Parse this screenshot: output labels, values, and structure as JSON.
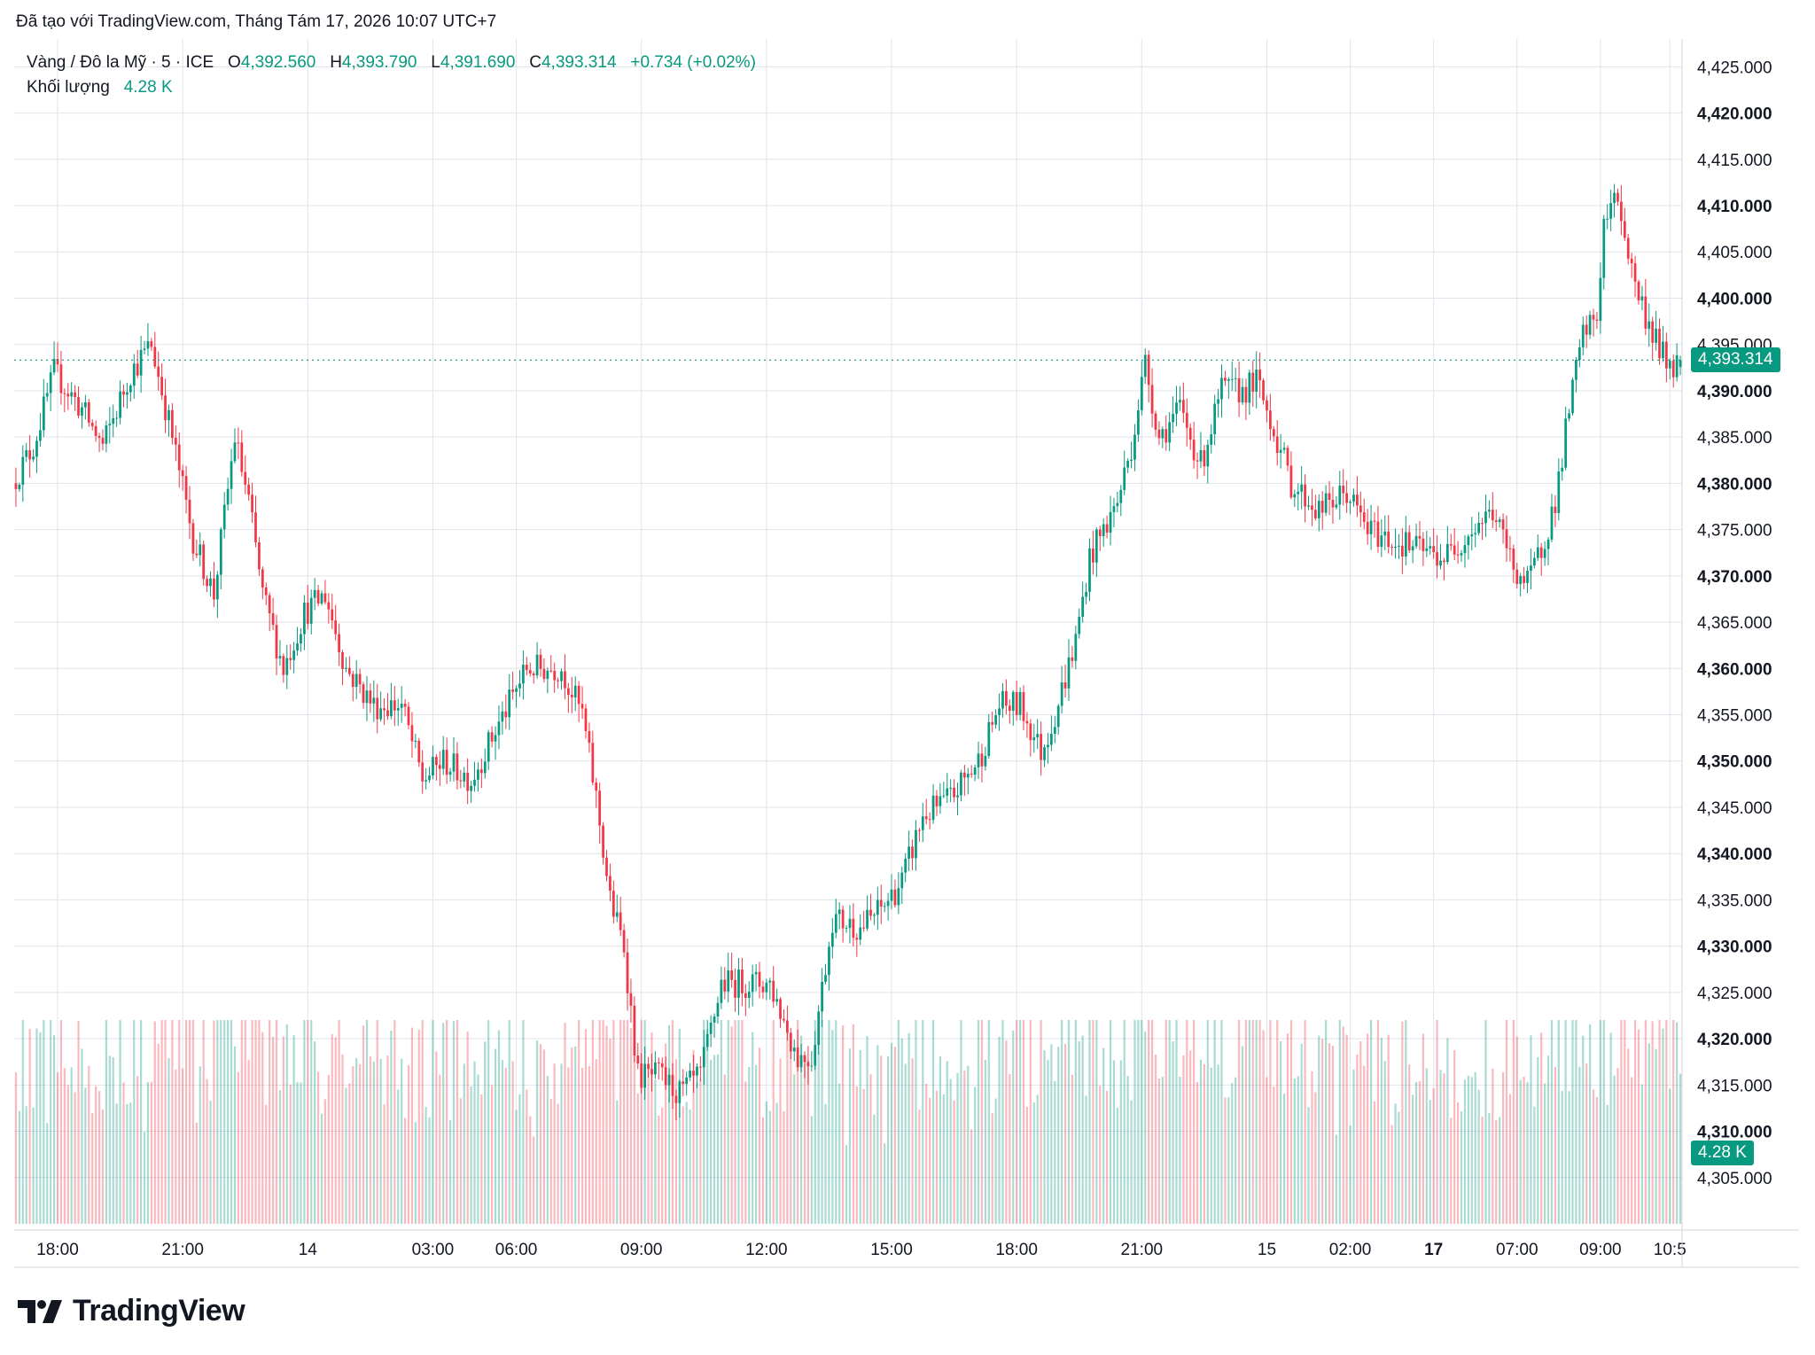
{
  "header": {
    "created_with": "Đã tạo với TradingView.com, Tháng Tám 17, 2026 10:07 UTC+7"
  },
  "legend": {
    "symbol": "Vàng / Đô la Mỹ · 5 · ICE",
    "o_label": "O",
    "o_value": "4,392.560",
    "h_label": "H",
    "h_value": "4,393.790",
    "l_label": "L",
    "l_value": "4,391.690",
    "c_label": "C",
    "c_value": "4,393.314",
    "change": "+0.734 (+0.02%)",
    "volume_label": "Khối lượng",
    "volume_value": "4.28 K"
  },
  "price_tag": "4,393.314",
  "volume_tag": "4.28 K",
  "brand": {
    "name": "TradingView",
    "logo_icon": "tradingview-logo-icon"
  },
  "colors": {
    "up": "#089981",
    "down": "#f23645",
    "grid": "#e0e3eb"
  },
  "chart_data": {
    "type": "candlestick",
    "y_axis": {
      "ylim": [
        4300,
        4428
      ],
      "ticks": [
        {
          "value": 4425,
          "label": "4,425.000",
          "bold": false
        },
        {
          "value": 4420,
          "label": "4,420.000",
          "bold": true
        },
        {
          "value": 4415,
          "label": "4,415.000",
          "bold": false
        },
        {
          "value": 4410,
          "label": "4,410.000",
          "bold": true
        },
        {
          "value": 4405,
          "label": "4,405.000",
          "bold": false
        },
        {
          "value": 4400,
          "label": "4,400.000",
          "bold": true
        },
        {
          "value": 4395,
          "label": "4,395.000",
          "bold": false
        },
        {
          "value": 4390,
          "label": "4,390.000",
          "bold": true
        },
        {
          "value": 4385,
          "label": "4,385.000",
          "bold": false
        },
        {
          "value": 4380,
          "label": "4,380.000",
          "bold": true
        },
        {
          "value": 4375,
          "label": "4,375.000",
          "bold": false
        },
        {
          "value": 4370,
          "label": "4,370.000",
          "bold": true
        },
        {
          "value": 4365,
          "label": "4,365.000",
          "bold": false
        },
        {
          "value": 4360,
          "label": "4,360.000",
          "bold": true
        },
        {
          "value": 4355,
          "label": "4,355.000",
          "bold": false
        },
        {
          "value": 4350,
          "label": "4,350.000",
          "bold": true
        },
        {
          "value": 4345,
          "label": "4,345.000",
          "bold": false
        },
        {
          "value": 4340,
          "label": "4,340.000",
          "bold": true
        },
        {
          "value": 4335,
          "label": "4,335.000",
          "bold": false
        },
        {
          "value": 4330,
          "label": "4,330.000",
          "bold": true
        },
        {
          "value": 4325,
          "label": "4,325.000",
          "bold": false
        },
        {
          "value": 4320,
          "label": "4,320.000",
          "bold": true
        },
        {
          "value": 4315,
          "label": "4,315.000",
          "bold": false
        },
        {
          "value": 4310,
          "label": "4,310.000",
          "bold": true
        },
        {
          "value": 4305,
          "label": "4,305.000",
          "bold": false
        }
      ]
    },
    "x_axis": {
      "ticks": [
        {
          "label": "18:00",
          "bar": 12,
          "bold": false
        },
        {
          "label": "21:00",
          "bar": 48,
          "bold": false
        },
        {
          "label": "14",
          "bar": 84,
          "bold": false
        },
        {
          "label": "03:00",
          "bar": 120,
          "bold": false
        },
        {
          "label": "06:00",
          "bar": 144,
          "bold": false
        },
        {
          "label": "09:00",
          "bar": 180,
          "bold": false
        },
        {
          "label": "12:00",
          "bar": 216,
          "bold": false
        },
        {
          "label": "15:00",
          "bar": 252,
          "bold": false
        },
        {
          "label": "18:00",
          "bar": 288,
          "bold": false
        },
        {
          "label": "21:00",
          "bar": 324,
          "bold": false
        },
        {
          "label": "15",
          "bar": 360,
          "bold": false
        },
        {
          "label": "02:00",
          "bar": 384,
          "bold": false
        },
        {
          "label": "17",
          "bar": 408,
          "bold": true
        },
        {
          "label": "07:00",
          "bar": 432,
          "bold": false
        },
        {
          "label": "09:00",
          "bar": 456,
          "bold": false
        },
        {
          "label": "10:5",
          "bar": 476,
          "bold": false
        }
      ]
    },
    "keypoints": [
      [
        0,
        4380
      ],
      [
        6,
        4384
      ],
      [
        12,
        4392
      ],
      [
        20,
        4388
      ],
      [
        26,
        4384
      ],
      [
        34,
        4392
      ],
      [
        40,
        4395
      ],
      [
        46,
        4385
      ],
      [
        52,
        4374
      ],
      [
        58,
        4368
      ],
      [
        64,
        4385
      ],
      [
        68,
        4378
      ],
      [
        72,
        4368
      ],
      [
        78,
        4360
      ],
      [
        84,
        4366
      ],
      [
        90,
        4368
      ],
      [
        96,
        4360
      ],
      [
        104,
        4356
      ],
      [
        112,
        4356
      ],
      [
        118,
        4348
      ],
      [
        124,
        4350
      ],
      [
        132,
        4348
      ],
      [
        140,
        4354
      ],
      [
        148,
        4360
      ],
      [
        158,
        4360
      ],
      [
        164,
        4355
      ],
      [
        168,
        4346
      ],
      [
        172,
        4335
      ],
      [
        176,
        4330
      ],
      [
        180,
        4316
      ],
      [
        186,
        4316
      ],
      [
        192,
        4314
      ],
      [
        198,
        4316
      ],
      [
        204,
        4326
      ],
      [
        210,
        4326
      ],
      [
        218,
        4326
      ],
      [
        226,
        4318
      ],
      [
        230,
        4318
      ],
      [
        236,
        4333
      ],
      [
        244,
        4332
      ],
      [
        250,
        4334
      ],
      [
        256,
        4337
      ],
      [
        262,
        4344
      ],
      [
        270,
        4346
      ],
      [
        278,
        4350
      ],
      [
        284,
        4356
      ],
      [
        290,
        4356
      ],
      [
        296,
        4351
      ],
      [
        300,
        4355
      ],
      [
        306,
        4363
      ],
      [
        310,
        4372
      ],
      [
        314,
        4375
      ],
      [
        318,
        4378
      ],
      [
        322,
        4384
      ],
      [
        326,
        4393
      ],
      [
        330,
        4385
      ],
      [
        336,
        4388
      ],
      [
        342,
        4382
      ],
      [
        348,
        4390
      ],
      [
        354,
        4390
      ],
      [
        358,
        4391
      ],
      [
        362,
        4387
      ],
      [
        368,
        4380
      ],
      [
        376,
        4377
      ],
      [
        384,
        4379
      ],
      [
        390,
        4375
      ],
      [
        396,
        4374
      ],
      [
        404,
        4373
      ],
      [
        412,
        4372
      ],
      [
        420,
        4375
      ],
      [
        426,
        4377
      ],
      [
        432,
        4371
      ],
      [
        436,
        4369
      ],
      [
        440,
        4373
      ],
      [
        444,
        4378
      ],
      [
        448,
        4388
      ],
      [
        452,
        4396
      ],
      [
        456,
        4398
      ],
      [
        458,
        4408
      ],
      [
        462,
        4411
      ],
      [
        466,
        4403
      ],
      [
        470,
        4398
      ],
      [
        476,
        4393
      ]
    ],
    "n_bars": 480,
    "last": {
      "o": 4392.56,
      "h": 4393.79,
      "l": 4391.69,
      "c": 4393.314,
      "volume": "4.28 K"
    }
  }
}
